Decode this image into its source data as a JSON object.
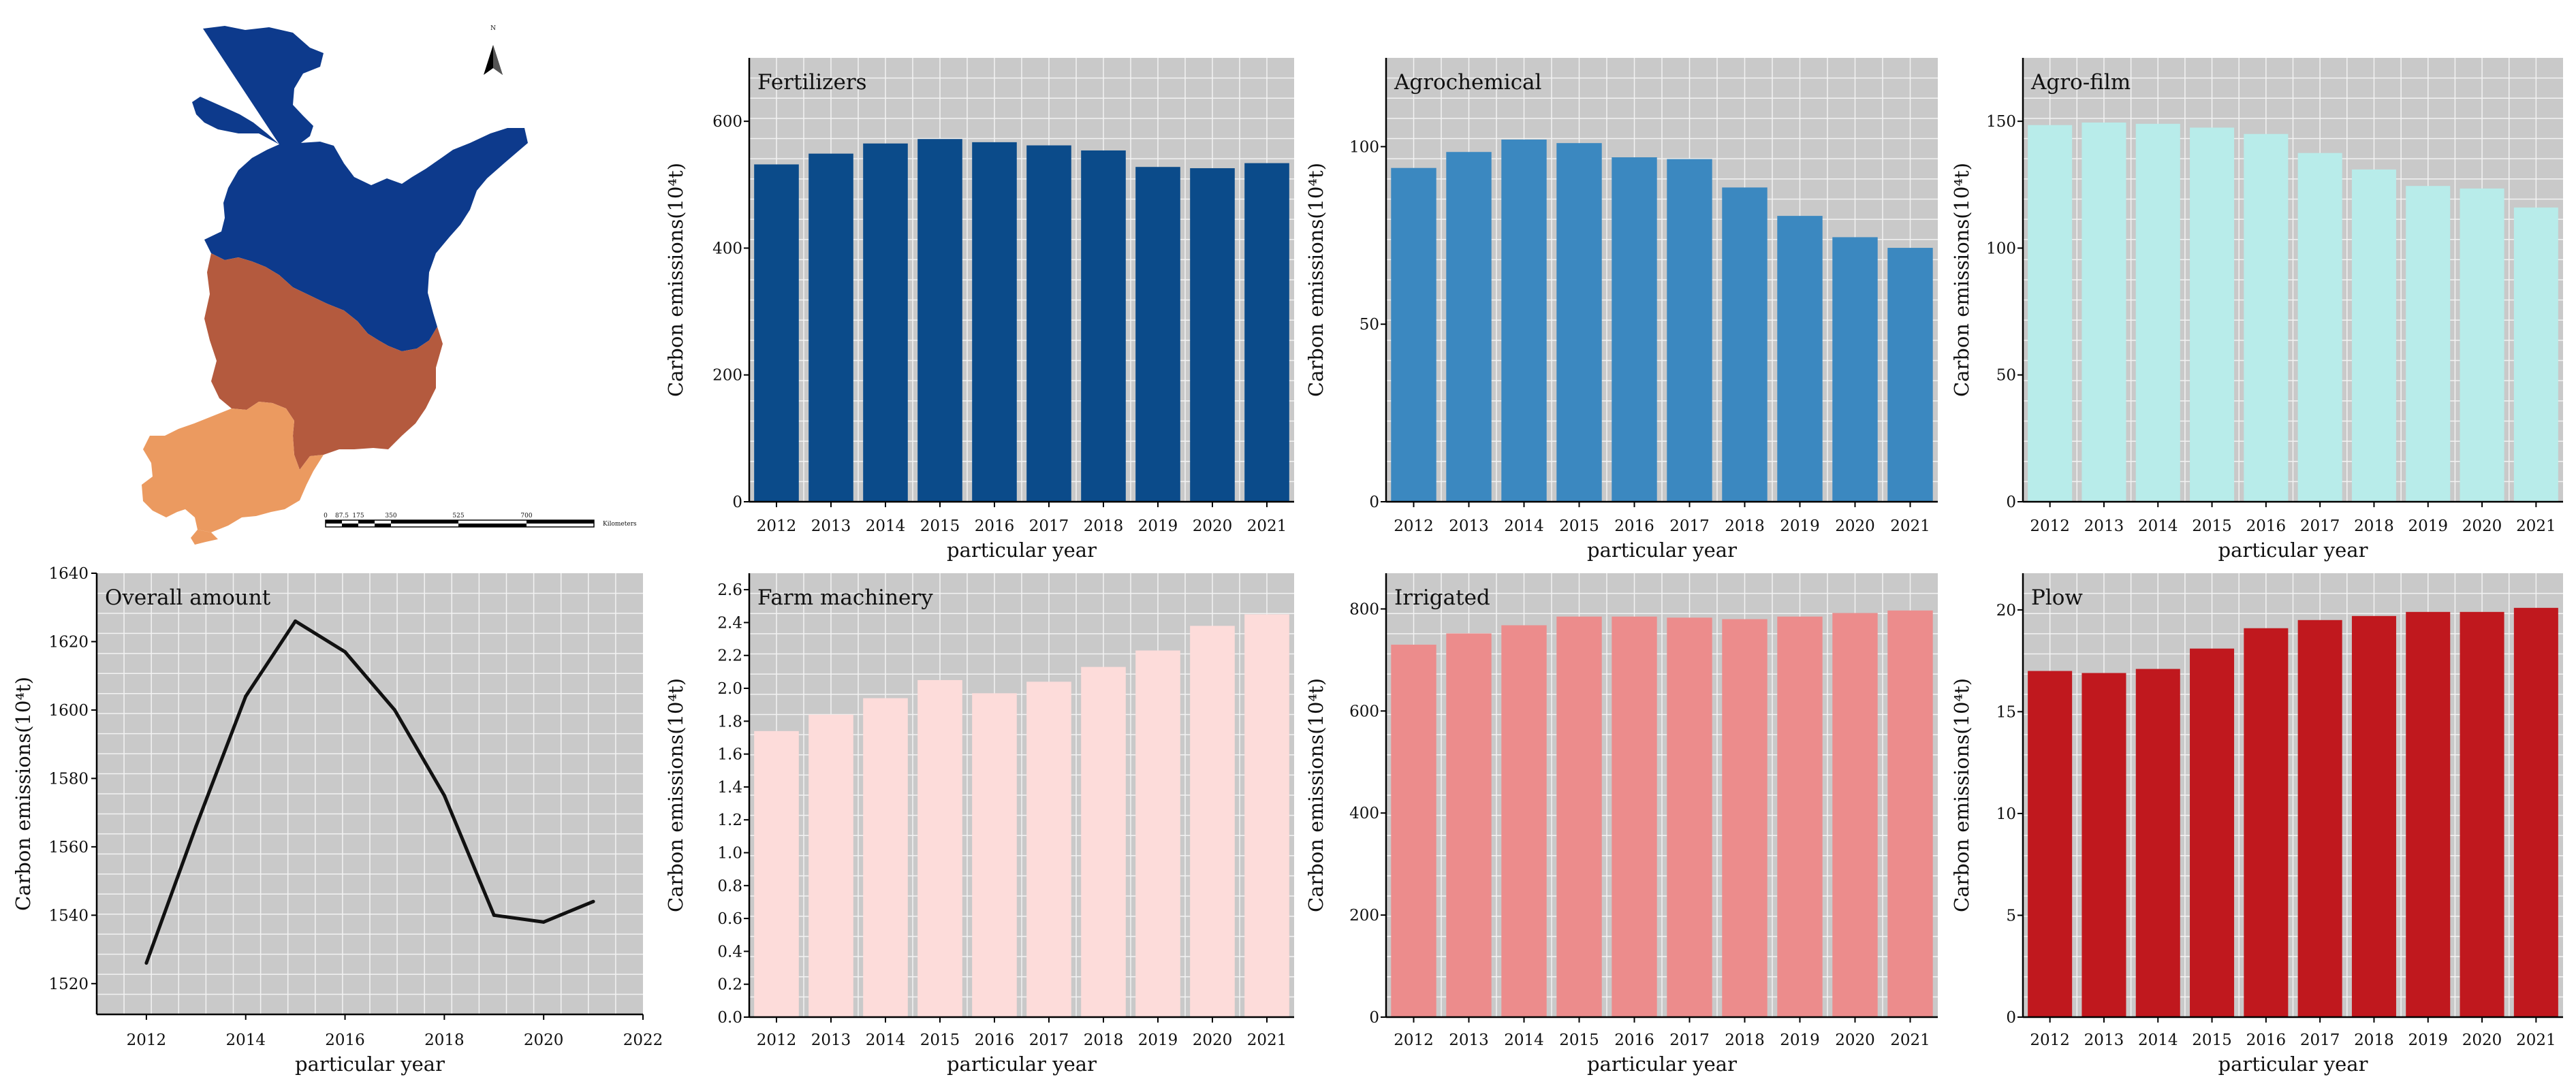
{
  "figure": {
    "background": "#ffffff",
    "plot_background": "#c9c9c9",
    "grid_color": "#f2f2f2"
  },
  "map": {
    "north_label": "N",
    "scale_labels": [
      "0",
      "87.5",
      "175",
      "350",
      "525",
      "700"
    ],
    "scale_unit": "Kilometers",
    "regions": [
      {
        "name": "north",
        "color": "#0d3a8c"
      },
      {
        "name": "middle",
        "color": "#b45a3e"
      },
      {
        "name": "south",
        "color": "#eb9a60"
      }
    ]
  },
  "chart_data": [
    {
      "type": "bar",
      "title": "Fertilizers",
      "xlabel": "particular year",
      "ylabel": "Carbon emissions(10⁴t)",
      "categories": [
        "2012",
        "2013",
        "2014",
        "2015",
        "2016",
        "2017",
        "2018",
        "2019",
        "2020",
        "2021"
      ],
      "values": [
        532,
        549,
        565,
        572,
        567,
        562,
        554,
        528,
        526,
        534
      ],
      "ylim": [
        0,
        700
      ],
      "yticks": [
        0,
        200,
        400,
        600
      ],
      "color": "#0b4b8a"
    },
    {
      "type": "bar",
      "title": "Agrochemical",
      "xlabel": "particular year",
      "ylabel": "Carbon emissions(10⁴t)",
      "categories": [
        "2012",
        "2013",
        "2014",
        "2015",
        "2016",
        "2017",
        "2018",
        "2019",
        "2020",
        "2021"
      ],
      "values": [
        94,
        98.5,
        102,
        101,
        97,
        96.5,
        88.5,
        80.5,
        74.5,
        71.5
      ],
      "ylim": [
        0,
        125
      ],
      "yticks": [
        0,
        50,
        100
      ],
      "color": "#3b88c0"
    },
    {
      "type": "bar",
      "title": "Agro-film",
      "xlabel": "particular year",
      "ylabel": "Carbon emissions(10⁴t)",
      "categories": [
        "2012",
        "2013",
        "2014",
        "2015",
        "2016",
        "2017",
        "2018",
        "2019",
        "2020",
        "2021"
      ],
      "values": [
        148.5,
        149.5,
        149,
        147.5,
        145,
        137.5,
        131,
        124.5,
        123.5,
        116
      ],
      "ylim": [
        0,
        175
      ],
      "yticks": [
        0,
        50,
        100,
        150
      ],
      "color": "#b8ecea"
    },
    {
      "type": "line",
      "title": "Overall amount",
      "xlabel": "particular year",
      "ylabel": "Carbon emissions(10⁴t)",
      "x": [
        2012,
        2013,
        2014,
        2015,
        2016,
        2017,
        2018,
        2019,
        2020,
        2021
      ],
      "values": [
        1526,
        1566,
        1604,
        1626,
        1617,
        1600,
        1575,
        1540,
        1538,
        1544
      ],
      "xlim": [
        2011,
        2022
      ],
      "xticks": [
        2012,
        2014,
        2016,
        2018,
        2020,
        2022
      ],
      "ylim": [
        1511,
        1640
      ],
      "yticks": [
        1520,
        1540,
        1560,
        1580,
        1600,
        1620,
        1640
      ],
      "color": "#111111"
    },
    {
      "type": "bar",
      "title": "Farm machinery",
      "xlabel": "particular year",
      "ylabel": "Carbon emissions(10⁴t)",
      "categories": [
        "2012",
        "2013",
        "2014",
        "2015",
        "2016",
        "2017",
        "2018",
        "2019",
        "2020",
        "2021"
      ],
      "values": [
        1.74,
        1.84,
        1.94,
        2.05,
        1.97,
        2.04,
        2.13,
        2.23,
        2.38,
        2.45
      ],
      "ylim": [
        0,
        2.7
      ],
      "yticks": [
        0.0,
        0.2,
        0.4,
        0.6,
        0.8,
        1.0,
        1.2,
        1.4,
        1.6,
        1.8,
        2.0,
        2.2,
        2.4,
        2.6
      ],
      "ytick_labels": [
        "0.0",
        "0.2",
        "0.4",
        "0.6",
        "0.8",
        "1.0",
        "1.2",
        "1.4",
        "1.6",
        "1.8",
        "2.0",
        "2.2",
        "2.4",
        "2.6"
      ],
      "color": "#fddcda"
    },
    {
      "type": "bar",
      "title": "Irrigated",
      "xlabel": "particular year",
      "ylabel": "Carbon emissions(10⁴t)",
      "categories": [
        "2012",
        "2013",
        "2014",
        "2015",
        "2016",
        "2017",
        "2018",
        "2019",
        "2020",
        "2021"
      ],
      "values": [
        730,
        752,
        768,
        785,
        785,
        783,
        780,
        785,
        792,
        797
      ],
      "ylim": [
        0,
        870
      ],
      "yticks": [
        0,
        200,
        400,
        600,
        800
      ],
      "color": "#ec8c8c"
    },
    {
      "type": "bar",
      "title": "Plow",
      "xlabel": "particular year",
      "ylabel": "Carbon emissions(10⁴t)",
      "categories": [
        "2012",
        "2013",
        "2014",
        "2015",
        "2016",
        "2017",
        "2018",
        "2019",
        "2020",
        "2021"
      ],
      "values": [
        17.0,
        16.9,
        17.1,
        18.1,
        19.1,
        19.5,
        19.7,
        19.9,
        19.9,
        20.1
      ],
      "ylim": [
        0,
        21.8
      ],
      "yticks": [
        0,
        5,
        10,
        15,
        20
      ],
      "color": "#c0181e"
    }
  ]
}
